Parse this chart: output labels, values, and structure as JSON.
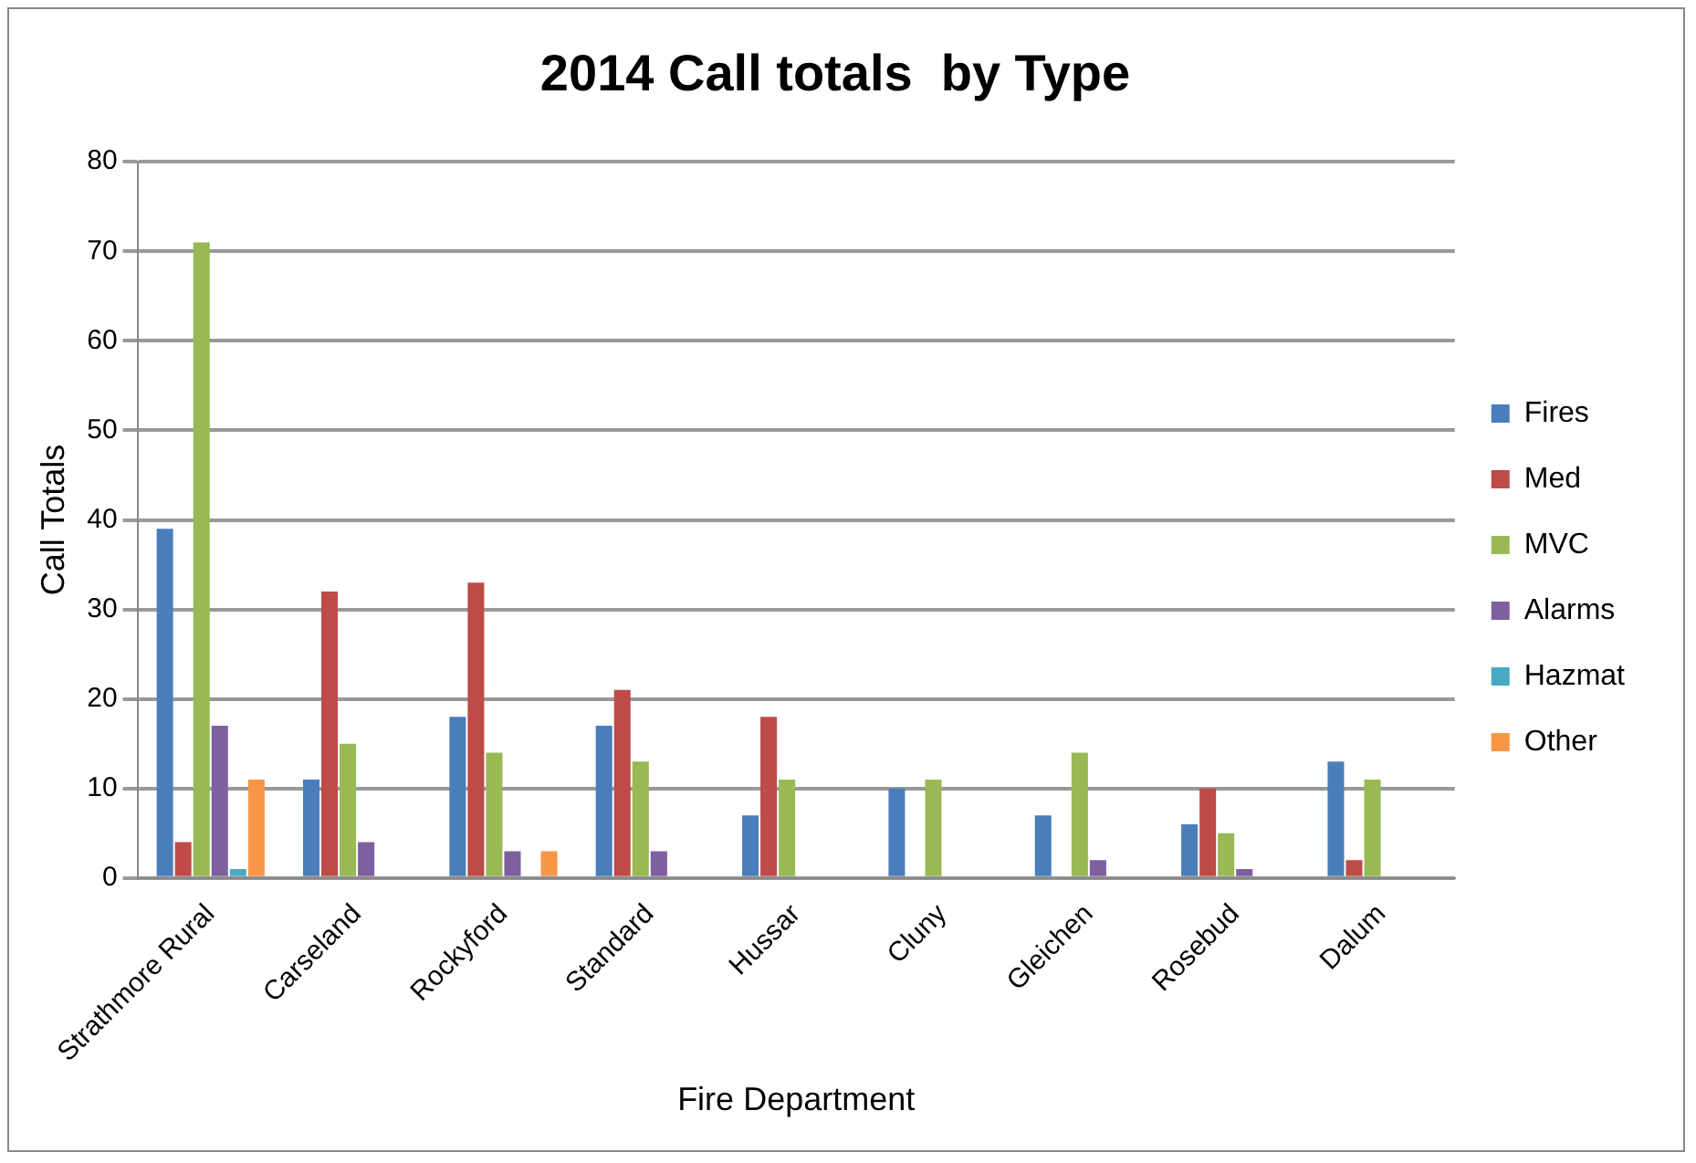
{
  "chart_data": {
    "type": "bar",
    "title": "2014 Call totals  by Type",
    "xlabel": "Fire Department",
    "ylabel": "Call Totals",
    "categories": [
      "Strathmore Rural",
      "Carseland",
      "Rockyford",
      "Standard",
      "Hussar",
      "Cluny",
      "Gleichen",
      "Rosebud",
      "Dalum"
    ],
    "series": [
      {
        "name": "Fires",
        "color": "#4a7ebb",
        "values": [
          39,
          11,
          18,
          17,
          7,
          10,
          7,
          6,
          13
        ]
      },
      {
        "name": "Med",
        "color": "#be4b48",
        "values": [
          4,
          32,
          33,
          21,
          18,
          0,
          0,
          10,
          2
        ]
      },
      {
        "name": "MVC",
        "color": "#98b954",
        "values": [
          71,
          15,
          14,
          13,
          11,
          11,
          14,
          5,
          11
        ]
      },
      {
        "name": "Alarms",
        "color": "#7d60a0",
        "values": [
          17,
          4,
          3,
          3,
          0,
          0,
          2,
          1,
          0
        ]
      },
      {
        "name": "Hazmat",
        "color": "#46aac5",
        "values": [
          1,
          0,
          0,
          0,
          0,
          0,
          0,
          0,
          0
        ]
      },
      {
        "name": "Other",
        "color": "#f79646",
        "values": [
          11,
          0,
          3,
          0,
          0,
          0,
          0,
          0,
          0
        ]
      }
    ],
    "ylim": [
      0,
      80
    ],
    "yticks": [
      0,
      10,
      20,
      30,
      40,
      50,
      60,
      70,
      80
    ],
    "grid": "y",
    "legend": "right"
  }
}
